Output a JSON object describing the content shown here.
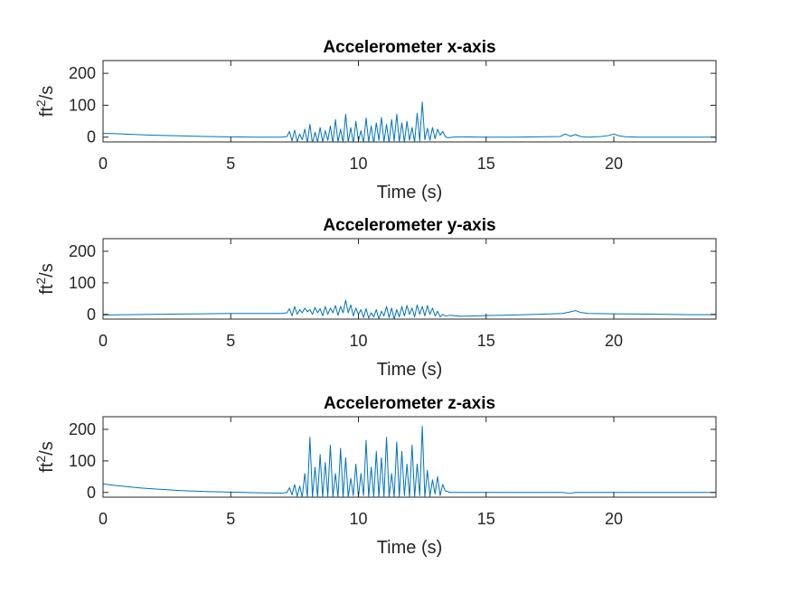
{
  "chart_data": [
    {
      "type": "line",
      "title": "Accelerometer x-axis",
      "xlabel": "Time (s)",
      "ylabel_base": "ft",
      "ylabel_sup": "2",
      "ylabel_tail": "/s",
      "xlim": [
        0,
        24
      ],
      "ylim": [
        -15,
        240
      ],
      "xticks": [
        0,
        5,
        10,
        15,
        20
      ],
      "yticks": [
        0,
        100,
        200
      ],
      "grid": false,
      "color": "#0072BD",
      "series": [
        {
          "x": [
            0,
            0.5,
            1,
            2,
            3,
            4,
            5,
            6,
            7,
            7.2,
            7.3,
            7.4,
            7.5,
            7.6,
            7.7,
            7.8,
            7.9,
            8.0,
            8.1,
            8.2,
            8.3,
            8.4,
            8.5,
            8.6,
            8.7,
            8.8,
            8.9,
            9.0,
            9.1,
            9.2,
            9.3,
            9.4,
            9.5,
            9.6,
            9.7,
            9.8,
            9.9,
            10.0,
            10.1,
            10.2,
            10.3,
            10.4,
            10.5,
            10.6,
            10.7,
            10.8,
            10.9,
            11.0,
            11.1,
            11.2,
            11.3,
            11.4,
            11.5,
            11.6,
            11.7,
            11.8,
            11.9,
            12.0,
            12.1,
            12.2,
            12.3,
            12.4,
            12.5,
            12.6,
            12.7,
            12.8,
            12.9,
            13.0,
            13.1,
            13.2,
            13.3,
            13.4,
            13.5,
            13.7,
            14,
            15,
            16,
            17,
            17.9,
            18.1,
            18.3,
            18.5,
            18.7,
            19,
            19.5,
            19.8,
            20.0,
            20.2,
            20.5,
            21,
            22,
            23,
            24
          ],
          "y": [
            12,
            11,
            9,
            6,
            4,
            2,
            1,
            0,
            0,
            2,
            18,
            -12,
            22,
            -15,
            10,
            -8,
            25,
            -18,
            40,
            -20,
            15,
            -15,
            30,
            -16,
            20,
            -10,
            35,
            -20,
            55,
            -15,
            25,
            -18,
            72,
            -15,
            30,
            -20,
            50,
            -12,
            20,
            -18,
            60,
            -14,
            35,
            -20,
            45,
            -10,
            62,
            -15,
            40,
            -18,
            55,
            -12,
            72,
            -15,
            45,
            -16,
            50,
            -10,
            30,
            -15,
            75,
            -12,
            110,
            -8,
            28,
            -10,
            30,
            -5,
            25,
            6,
            18,
            2,
            -2,
            0,
            1,
            0,
            0,
            1,
            2,
            10,
            3,
            8,
            2,
            0,
            2,
            5,
            10,
            4,
            1,
            0,
            0,
            0,
            0
          ]
        }
      ]
    },
    {
      "type": "line",
      "title": "Accelerometer y-axis",
      "xlabel": "Time (s)",
      "ylabel_base": "ft",
      "ylabel_sup": "2",
      "ylabel_tail": "/s",
      "xlim": [
        0,
        24
      ],
      "ylim": [
        -15,
        240
      ],
      "xticks": [
        0,
        5,
        10,
        15,
        20
      ],
      "yticks": [
        0,
        100,
        200
      ],
      "grid": false,
      "color": "#0072BD",
      "series": [
        {
          "x": [
            0,
            1,
            2,
            3,
            4,
            5,
            6,
            7,
            7.2,
            7.3,
            7.4,
            7.5,
            7.6,
            7.7,
            7.8,
            7.9,
            8.0,
            8.1,
            8.2,
            8.3,
            8.4,
            8.5,
            8.6,
            8.7,
            8.8,
            8.9,
            9.0,
            9.1,
            9.2,
            9.3,
            9.4,
            9.5,
            9.6,
            9.7,
            9.8,
            9.9,
            10.0,
            10.1,
            10.2,
            10.3,
            10.4,
            10.5,
            10.6,
            10.7,
            10.8,
            10.9,
            11.0,
            11.1,
            11.2,
            11.3,
            11.4,
            11.5,
            11.6,
            11.7,
            11.8,
            11.9,
            12.0,
            12.1,
            12.2,
            12.3,
            12.4,
            12.5,
            12.6,
            12.7,
            12.8,
            12.9,
            13.0,
            13.1,
            13.2,
            13.3,
            13.4,
            13.6,
            14,
            15,
            16,
            17,
            18,
            18.3,
            18.5,
            18.7,
            19,
            20,
            21,
            22,
            23,
            24
          ],
          "y": [
            -2,
            -1,
            0,
            1,
            2,
            3,
            3,
            3,
            5,
            18,
            -5,
            25,
            0,
            15,
            5,
            20,
            8,
            15,
            0,
            22,
            5,
            18,
            -5,
            25,
            0,
            20,
            5,
            28,
            -3,
            25,
            5,
            45,
            5,
            30,
            -5,
            20,
            0,
            15,
            -10,
            18,
            -12,
            5,
            -8,
            15,
            -15,
            10,
            -5,
            25,
            -10,
            20,
            -15,
            15,
            -8,
            25,
            -5,
            28,
            0,
            20,
            -8,
            30,
            0,
            25,
            -5,
            28,
            0,
            20,
            -5,
            10,
            -8,
            0,
            -5,
            -3,
            -6,
            -4,
            -2,
            0,
            3,
            8,
            12,
            6,
            3,
            2,
            1,
            0,
            -1,
            -1
          ]
        }
      ]
    },
    {
      "type": "line",
      "title": "Accelerometer z-axis",
      "xlabel": "Time (s)",
      "ylabel_base": "ft",
      "ylabel_sup": "2",
      "ylabel_tail": "/s",
      "xlim": [
        0,
        24
      ],
      "ylim": [
        -15,
        240
      ],
      "xticks": [
        0,
        5,
        10,
        15,
        20
      ],
      "yticks": [
        0,
        100,
        200
      ],
      "grid": false,
      "color": "#0072BD",
      "series": [
        {
          "x": [
            0,
            0.5,
            1,
            1.5,
            2,
            3,
            4,
            5,
            6,
            7,
            7.2,
            7.3,
            7.4,
            7.5,
            7.6,
            7.7,
            7.8,
            7.9,
            8.0,
            8.1,
            8.2,
            8.3,
            8.4,
            8.5,
            8.6,
            8.7,
            8.8,
            8.9,
            9.0,
            9.1,
            9.2,
            9.3,
            9.4,
            9.5,
            9.6,
            9.7,
            9.8,
            9.9,
            10.0,
            10.1,
            10.2,
            10.3,
            10.4,
            10.5,
            10.6,
            10.7,
            10.8,
            10.9,
            11.0,
            11.1,
            11.2,
            11.3,
            11.4,
            11.5,
            11.6,
            11.7,
            11.8,
            11.9,
            12.0,
            12.1,
            12.2,
            12.3,
            12.4,
            12.5,
            12.6,
            12.7,
            12.8,
            12.9,
            13.0,
            13.1,
            13.2,
            13.3,
            13.4,
            13.6,
            14,
            15,
            16,
            17,
            18,
            18.3,
            18.5,
            19,
            20,
            21,
            22,
            23,
            24
          ],
          "y": [
            27,
            22,
            18,
            14,
            11,
            6,
            3,
            1,
            -1,
            -2,
            0,
            15,
            -8,
            25,
            -12,
            20,
            -15,
            60,
            -15,
            175,
            -15,
            80,
            -15,
            120,
            -15,
            95,
            -12,
            150,
            -15,
            60,
            -15,
            140,
            -15,
            110,
            -15,
            45,
            -10,
            90,
            -15,
            60,
            -10,
            165,
            -15,
            80,
            -15,
            130,
            -15,
            110,
            -15,
            175,
            -15,
            60,
            -15,
            160,
            -15,
            130,
            -10,
            90,
            -15,
            150,
            -15,
            90,
            -10,
            210,
            -15,
            70,
            -12,
            40,
            -5,
            50,
            -10,
            25,
            5,
            0,
            0,
            0,
            0,
            0,
            0,
            -3,
            0,
            0,
            0,
            0,
            0,
            0,
            0
          ]
        }
      ]
    }
  ]
}
